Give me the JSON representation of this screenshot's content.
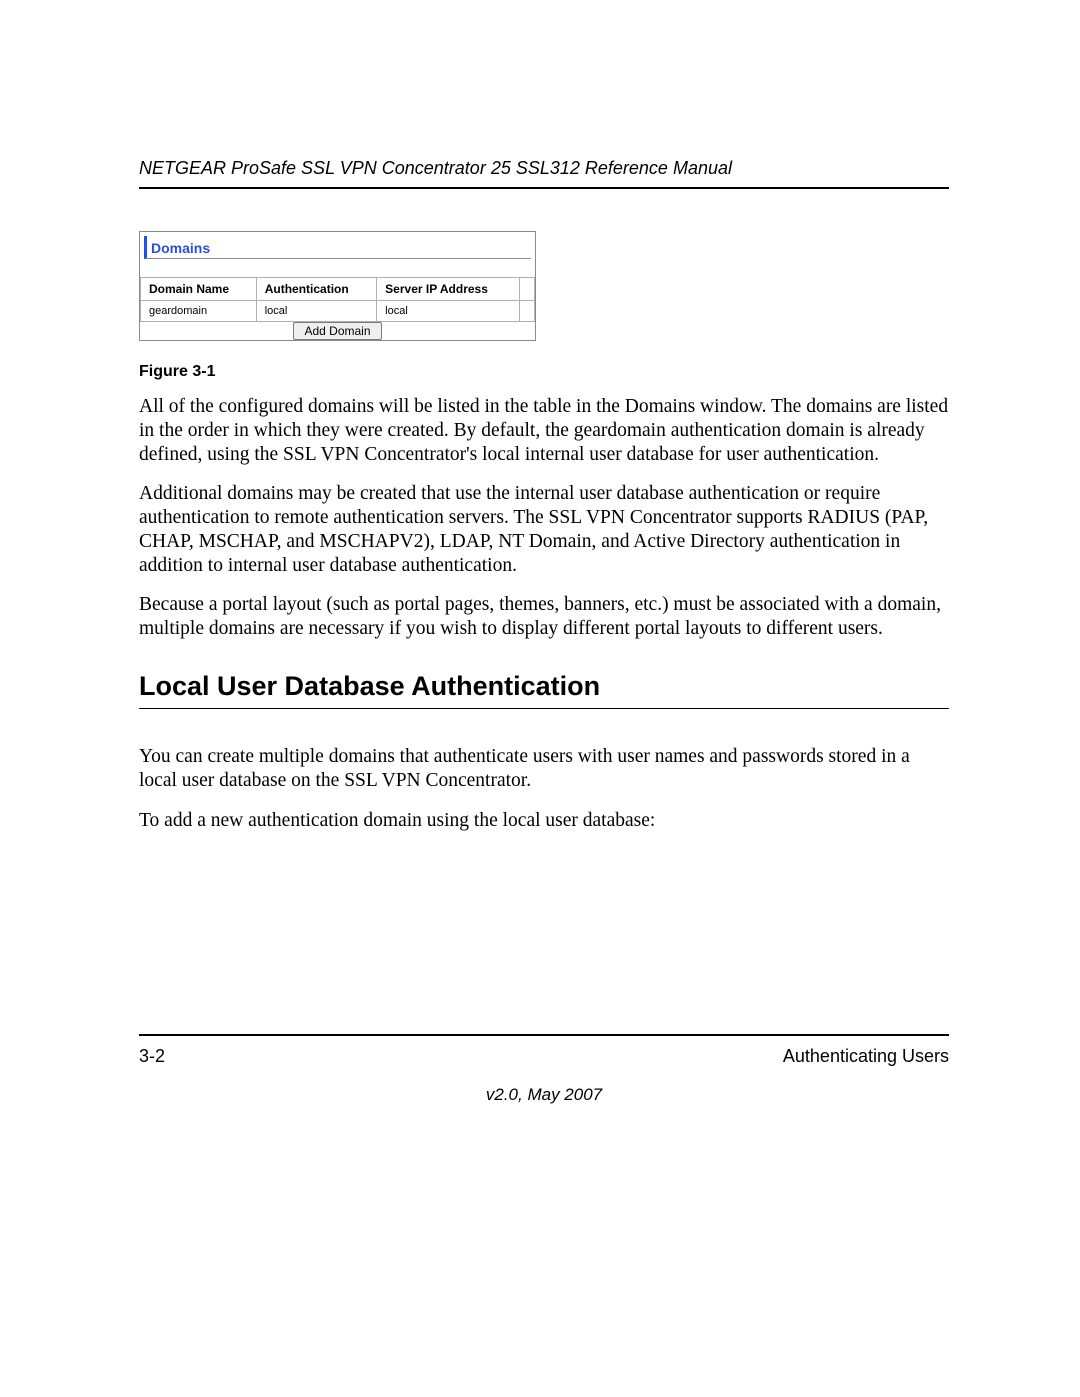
{
  "header": {
    "running_title": "NETGEAR ProSafe SSL VPN Concentrator 25 SSL312 Reference Manual"
  },
  "domains_panel": {
    "title": "Domains",
    "columns": [
      "Domain Name",
      "Authentication",
      "Server IP Address"
    ],
    "rows": [
      [
        "geardomain",
        "local",
        "local"
      ]
    ],
    "add_button_label": "Add Domain",
    "colors": {
      "title_color": "#2b4fd6",
      "border_color": "#8a8a8a",
      "cell_border_color": "#b0b0b0"
    }
  },
  "figure_caption": "Figure 3-1",
  "paragraphs": {
    "p1": "All of the configured domains will be listed in the table in the Domains window. The domains are listed in the order in which they were created. By default, the geardomain authentication domain is already defined, using the SSL VPN Concentrator's local internal user database for user authentication.",
    "p2": "Additional domains may be created that use the internal user database authentication or require authentication to remote authentication servers. The SSL VPN Concentrator supports RADIUS (PAP, CHAP, MSCHAP, and MSCHAPV2), LDAP, NT Domain, and Active Directory authentication in addition to internal user database authentication.",
    "p3": "Because a portal layout (such as portal pages, themes, banners, etc.) must be associated with a domain, multiple domains are necessary if you wish to display different portal layouts to different users."
  },
  "heading": "Local User Database Authentication",
  "paragraphs2": {
    "p4": "You can create multiple domains that authenticate users with user names and passwords stored in a local user database on the SSL VPN Concentrator.",
    "p5": "To add a new authentication domain using the local user database:"
  },
  "footer": {
    "page_number": "3-2",
    "section": "Authenticating Users",
    "version": "v2.0, May 2007"
  }
}
